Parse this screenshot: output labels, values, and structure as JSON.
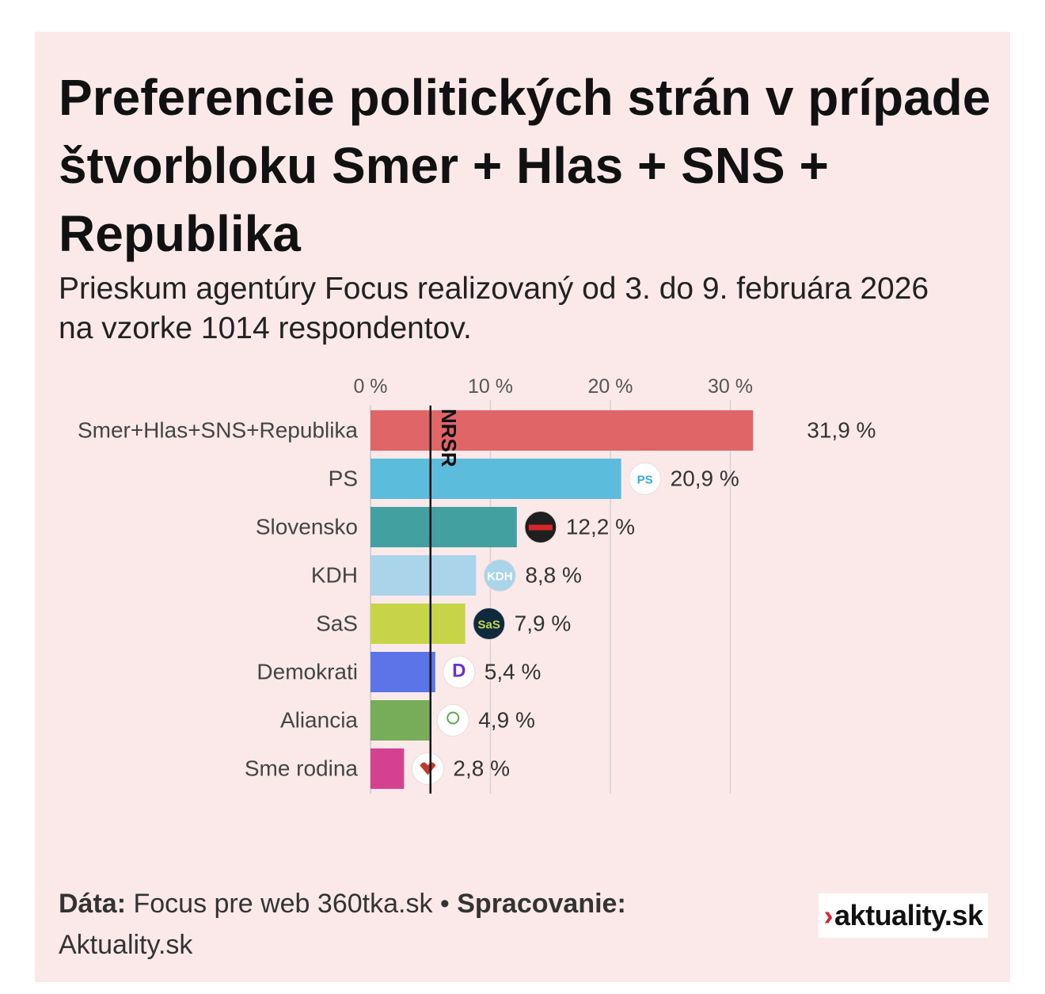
{
  "title": "Preferencie politických strán v prípade štvorbloku Smer + Hlas + SNS + Republika",
  "subtitle": "Prieskum agentúry Focus realizovaný od 3. do 9. februára 2026 na vzorke 1014 respondentov.",
  "chart_data": {
    "type": "bar",
    "orientation": "horizontal",
    "categories": [
      "Smer+Hlas+SNS+Republika",
      "PS",
      "Slovensko",
      "KDH",
      "SaS",
      "Demokrati",
      "Aliancia",
      "Sme rodina"
    ],
    "values": [
      31.9,
      20.9,
      12.2,
      8.8,
      7.9,
      5.4,
      4.9,
      2.8
    ],
    "value_labels": [
      "31,9 %",
      "20,9 %",
      "12,2 %",
      "8,8 %",
      "7,9 %",
      "5,4 %",
      "4,9 %",
      "2,8 %"
    ],
    "colors": [
      "#e06567",
      "#5cbcdc",
      "#42a0a1",
      "#a9d4ea",
      "#c8d448",
      "#5b74e8",
      "#77ad58",
      "#d4418f"
    ],
    "x_ticks": [
      0,
      10,
      20,
      30
    ],
    "x_tick_labels": [
      "0 %",
      "10 %",
      "20 %",
      "30 %"
    ],
    "xlim": [
      0,
      33
    ],
    "threshold": {
      "value": 5,
      "label": "NRSR"
    },
    "grid": true,
    "logos": [
      "",
      "ps-logo",
      "slovensko-logo",
      "kdh-logo",
      "sas-logo",
      "demokrati-logo",
      "aliancia-logo",
      "sme-rodina-logo"
    ],
    "logo_text": [
      "",
      "PS",
      "",
      "KDH",
      "SaS",
      "D",
      "",
      ""
    ]
  },
  "footer": {
    "data_label": "Dáta:",
    "data_text": " Focus pre web 360tka.sk • ",
    "processing_label": "Spracovanie:",
    "processing_text": " Aktuality.sk"
  },
  "logo": {
    "arrow": "›",
    "text": "aktuality.sk"
  }
}
